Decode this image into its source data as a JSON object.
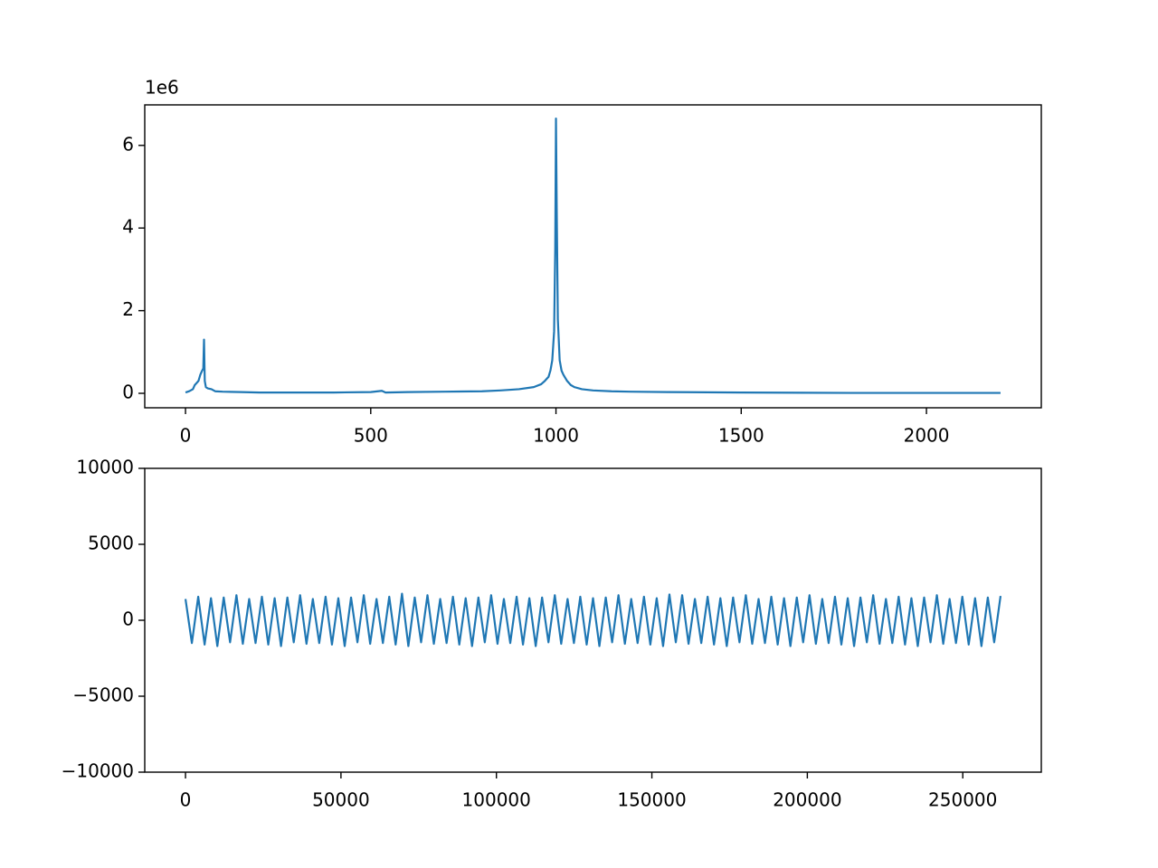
{
  "chart_data": [
    {
      "type": "line",
      "y_offset_label": "1e6",
      "x": [
        0,
        10,
        20,
        25,
        30,
        35,
        40,
        45,
        48,
        50,
        52,
        55,
        60,
        70,
        80,
        100,
        150,
        200,
        300,
        400,
        500,
        530,
        540,
        600,
        700,
        800,
        850,
        900,
        940,
        960,
        970,
        980,
        985,
        990,
        995,
        998,
        1000,
        1002,
        1005,
        1010,
        1015,
        1020,
        1030,
        1040,
        1050,
        1070,
        1100,
        1150,
        1200,
        1300,
        1500,
        1800,
        2000,
        2200
      ],
      "series": [
        {
          "color": "#1f77b4",
          "values": [
            0.02,
            0.05,
            0.1,
            0.2,
            0.25,
            0.3,
            0.45,
            0.55,
            0.6,
            1.3,
            0.3,
            0.15,
            0.12,
            0.1,
            0.05,
            0.04,
            0.03,
            0.02,
            0.02,
            0.02,
            0.03,
            0.06,
            0.02,
            0.03,
            0.04,
            0.05,
            0.07,
            0.1,
            0.15,
            0.22,
            0.3,
            0.4,
            0.55,
            0.8,
            1.5,
            3.5,
            6.65,
            4.5,
            1.8,
            0.8,
            0.55,
            0.45,
            0.3,
            0.2,
            0.15,
            0.1,
            0.07,
            0.05,
            0.04,
            0.03,
            0.02,
            0.01,
            0.01,
            0.01
          ]
        }
      ],
      "xlim": [
        -110,
        2310
      ],
      "xticks": [
        0,
        500,
        1000,
        1500,
        2000
      ],
      "ylim": [
        -0.35,
        6.98
      ],
      "yticks": [
        0,
        2,
        4,
        6
      ]
    },
    {
      "type": "line",
      "x": [
        0,
        2048,
        4096,
        6144,
        8192,
        10240,
        12288,
        14336,
        16384,
        18432,
        20480,
        22528,
        24576,
        26624,
        28672,
        30720,
        32768,
        34816,
        36864,
        38912,
        40960,
        43008,
        45056,
        47104,
        49152,
        51200,
        53248,
        55296,
        57344,
        59392,
        61440,
        63488,
        65536,
        67584,
        69632,
        71680,
        73728,
        75776,
        77824,
        79872,
        81920,
        83968,
        86016,
        88064,
        90112,
        92160,
        94208,
        96256,
        98304,
        100352,
        102400,
        104448,
        106496,
        108544,
        110592,
        112640,
        114688,
        116736,
        118784,
        120832,
        122880,
        124928,
        126976,
        129024,
        131072,
        133120,
        135168,
        137216,
        139264,
        141312,
        143360,
        145408,
        147456,
        149504,
        151552,
        153600,
        155648,
        157696,
        159744,
        161792,
        163840,
        165888,
        167936,
        169984,
        172032,
        174080,
        176128,
        178176,
        180224,
        182272,
        184320,
        186368,
        188416,
        190464,
        192512,
        194560,
        196608,
        198656,
        200704,
        202752,
        204800,
        206848,
        208896,
        210944,
        212992,
        215040,
        217088,
        219136,
        221184,
        223232,
        225280,
        227328,
        229376,
        231424,
        233472,
        235520,
        237568,
        239616,
        241664,
        243712,
        245760,
        247808,
        249856,
        251904,
        253952,
        256000,
        258048,
        260096,
        262144
      ],
      "series": [
        {
          "color": "#1f77b4",
          "values": [
            1400,
            -1500,
            1550,
            -1600,
            1450,
            -1700,
            1500,
            -1450,
            1650,
            -1550,
            1400,
            -1500,
            1550,
            -1600,
            1450,
            -1700,
            1500,
            -1450,
            1650,
            -1550,
            1400,
            -1500,
            1550,
            -1600,
            1450,
            -1700,
            1500,
            -1450,
            1650,
            -1550,
            1400,
            -1500,
            1550,
            -1600,
            1750,
            -1700,
            1500,
            -1450,
            1650,
            -1550,
            1400,
            -1500,
            1550,
            -1600,
            1450,
            -1700,
            1500,
            -1450,
            1650,
            -1550,
            1400,
            -1500,
            1550,
            -1600,
            1450,
            -1700,
            1500,
            -1450,
            1650,
            -1550,
            1400,
            -1500,
            1550,
            -1600,
            1450,
            -1700,
            1500,
            -1450,
            1650,
            -1550,
            1400,
            -1500,
            1550,
            -1600,
            1450,
            -1700,
            1700,
            -1450,
            1650,
            -1550,
            1400,
            -1500,
            1550,
            -1600,
            1450,
            -1700,
            1500,
            -1450,
            1650,
            -1550,
            1400,
            -1500,
            1550,
            -1600,
            1450,
            -1700,
            1500,
            -1450,
            1650,
            -1550,
            1400,
            -1500,
            1550,
            -1600,
            1450,
            -1700,
            1500,
            -1450,
            1650,
            -1550,
            1400,
            -1500,
            1550,
            -1600,
            1450,
            -1700,
            1500,
            -1450,
            1650,
            -1550,
            1400,
            -1500,
            1550,
            -1600,
            1450,
            -1700,
            1500,
            -1450,
            1600
          ]
        }
      ],
      "xlim": [
        -13107,
        275251
      ],
      "xticks": [
        0,
        50000,
        100000,
        150000,
        200000,
        250000
      ],
      "ylim": [
        -10000,
        10000
      ],
      "yticks": [
        {
          "value": -10000,
          "label": "−10000"
        },
        {
          "value": -5000,
          "label": "−5000"
        },
        0,
        5000,
        10000
      ]
    }
  ]
}
